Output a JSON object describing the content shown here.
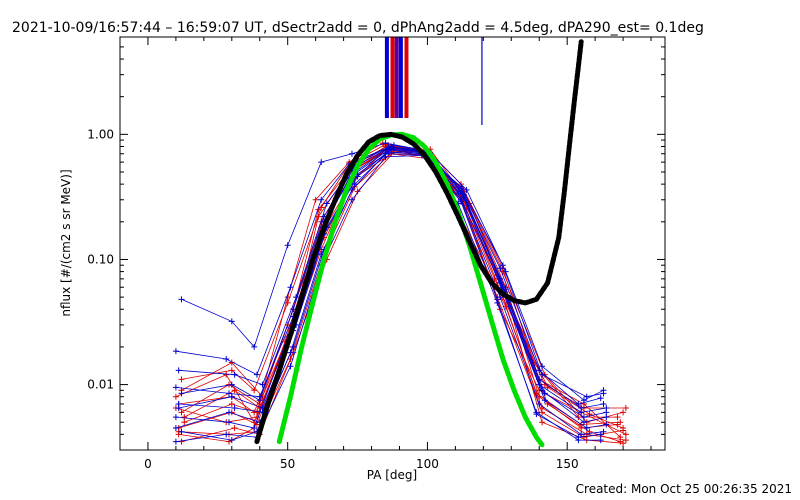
{
  "chart_data": {
    "type": "line",
    "title": "2021-10-09/16:57:44 – 16:59:07 UT, dSectr2add = 0, dPhAng2add = 4.5deg, dPA290_est=  0.1deg",
    "xlabel": "PA [deg]",
    "ylabel": "nflux [#/(cm2 s sr MeV)]",
    "footer": "Created: Mon Oct 25 00:26:35 2021",
    "xlim": [
      -10,
      185
    ],
    "ylim": [
      0.003,
      6.0
    ],
    "yscale": "log",
    "xticks": [
      0,
      50,
      100,
      150
    ],
    "xtick_labels": [
      "0",
      "50",
      "100",
      "150"
    ],
    "yticks": [
      0.01,
      0.1,
      1.0
    ],
    "ytick_labels": [
      "0.01",
      "0.10",
      "1.00"
    ],
    "colors": {
      "red_series": "#e00000",
      "blue_series": "#0000d0",
      "black_fit": "#000000",
      "green_fit": "#00dd00",
      "marker_lines": [
        "#0000d0",
        "#e00000",
        "#5a00a0",
        "#0000d0",
        "#e00000",
        "#0000d0"
      ]
    },
    "vertical_markers_pa": [
      85.5,
      87.5,
      89.0,
      90.5,
      92.5,
      119.5
    ],
    "black_fit": {
      "x": [
        39,
        43,
        47,
        51,
        55,
        59,
        63,
        67,
        71,
        75,
        79,
        83,
        87,
        91,
        95,
        99,
        103,
        107,
        111,
        115,
        119,
        123,
        127,
        131,
        135,
        139,
        143,
        147,
        149,
        151,
        152.5,
        154,
        155
      ],
      "y": [
        0.0035,
        0.007,
        0.013,
        0.025,
        0.05,
        0.1,
        0.18,
        0.3,
        0.48,
        0.68,
        0.87,
        0.98,
        1.0,
        0.95,
        0.84,
        0.68,
        0.5,
        0.34,
        0.22,
        0.14,
        0.09,
        0.065,
        0.053,
        0.047,
        0.045,
        0.048,
        0.065,
        0.15,
        0.35,
        0.9,
        1.8,
        3.5,
        5.5
      ]
    },
    "green_fit": {
      "x": [
        47,
        51,
        55,
        59,
        63,
        67,
        71,
        75,
        79,
        83,
        87,
        91,
        95,
        99,
        103,
        107,
        111,
        115,
        119,
        123,
        127,
        131,
        135,
        139,
        141
      ],
      "y": [
        0.0035,
        0.008,
        0.02,
        0.045,
        0.1,
        0.2,
        0.36,
        0.56,
        0.76,
        0.92,
        0.99,
        1.0,
        0.94,
        0.8,
        0.6,
        0.4,
        0.24,
        0.13,
        0.065,
        0.032,
        0.016,
        0.009,
        0.0055,
        0.0038,
        0.0033
      ]
    },
    "series": [
      {
        "color": "red",
        "x": [
          11,
          30,
          38,
          50,
          62,
          72,
          85,
          100,
          112,
          128,
          140,
          155,
          168
        ],
        "y": [
          0.007,
          0.008,
          0.006,
          0.03,
          0.2,
          0.5,
          0.8,
          0.75,
          0.4,
          0.06,
          0.008,
          0.0045,
          0.0048
        ]
      },
      {
        "color": "red",
        "x": [
          11,
          30,
          39,
          50,
          62,
          72,
          85,
          98,
          112,
          125,
          141,
          156,
          170
        ],
        "y": [
          0.0045,
          0.006,
          0.0048,
          0.02,
          0.12,
          0.4,
          0.75,
          0.72,
          0.3,
          0.05,
          0.006,
          0.0038,
          0.0043
        ]
      },
      {
        "color": "red",
        "x": [
          12,
          29,
          40,
          52,
          61,
          73,
          86,
          99,
          113,
          127,
          142,
          157,
          170
        ],
        "y": [
          0.006,
          0.01,
          0.007,
          0.04,
          0.25,
          0.55,
          0.82,
          0.7,
          0.35,
          0.08,
          0.012,
          0.005,
          0.006
        ]
      },
      {
        "color": "red",
        "x": [
          10,
          28,
          38,
          51,
          63,
          74,
          87,
          100,
          114,
          126,
          140,
          155,
          171
        ],
        "y": [
          0.008,
          0.012,
          0.005,
          0.025,
          0.15,
          0.45,
          0.7,
          0.68,
          0.25,
          0.04,
          0.009,
          0.006,
          0.004
        ]
      },
      {
        "color": "red",
        "x": [
          12,
          31,
          40,
          52,
          64,
          75,
          88,
          101,
          115,
          128,
          143,
          158,
          169
        ],
        "y": [
          0.0035,
          0.0045,
          0.004,
          0.018,
          0.1,
          0.35,
          0.72,
          0.76,
          0.28,
          0.055,
          0.007,
          0.0042,
          0.0035
        ]
      },
      {
        "color": "red",
        "x": [
          13,
          30,
          39,
          50,
          60,
          72,
          84,
          97,
          112,
          124,
          138,
          154,
          168
        ],
        "y": [
          0.005,
          0.007,
          0.006,
          0.05,
          0.3,
          0.6,
          0.85,
          0.74,
          0.32,
          0.07,
          0.015,
          0.0055,
          0.0055
        ]
      },
      {
        "color": "red",
        "x": [
          11,
          29,
          38,
          49,
          62,
          71,
          86,
          98,
          111,
          129,
          141,
          157,
          170
        ],
        "y": [
          0.004,
          0.0035,
          0.0045,
          0.022,
          0.18,
          0.48,
          0.78,
          0.72,
          0.38,
          0.045,
          0.005,
          0.0036,
          0.0034
        ]
      },
      {
        "color": "red",
        "x": [
          12,
          30,
          41,
          53,
          63,
          74,
          87,
          100,
          113,
          126,
          142,
          156,
          171
        ],
        "y": [
          0.009,
          0.015,
          0.008,
          0.035,
          0.2,
          0.52,
          0.8,
          0.7,
          0.3,
          0.065,
          0.01,
          0.0065,
          0.0065
        ]
      },
      {
        "color": "red",
        "x": [
          10,
          28,
          39,
          51,
          62,
          73,
          85,
          99,
          114,
          127,
          139,
          155,
          169
        ],
        "y": [
          0.0065,
          0.005,
          0.0055,
          0.028,
          0.16,
          0.42,
          0.76,
          0.69,
          0.27,
          0.05,
          0.0085,
          0.0048,
          0.005
        ]
      },
      {
        "color": "red",
        "x": [
          13,
          31,
          40,
          52,
          61,
          72,
          86,
          101,
          112,
          125,
          143,
          158,
          170
        ],
        "y": [
          0.0055,
          0.009,
          0.0065,
          0.03,
          0.22,
          0.5,
          0.74,
          0.66,
          0.33,
          0.075,
          0.0095,
          0.0058,
          0.0045
        ]
      },
      {
        "color": "red",
        "x": [
          12,
          30,
          38,
          50,
          62,
          72,
          85,
          98,
          113,
          127,
          140,
          156,
          169
        ],
        "y": [
          0.011,
          0.013,
          0.009,
          0.045,
          0.26,
          0.58,
          0.83,
          0.73,
          0.36,
          0.085,
          0.011,
          0.007,
          0.0038
        ]
      },
      {
        "color": "red",
        "x": [
          11,
          29,
          39,
          51,
          63,
          74,
          87,
          100,
          111,
          128,
          141,
          157,
          171
        ],
        "y": [
          0.0042,
          0.004,
          0.0042,
          0.016,
          0.11,
          0.38,
          0.7,
          0.64,
          0.24,
          0.042,
          0.0065,
          0.004,
          0.0036
        ]
      },
      {
        "color": "blue",
        "x": [
          10,
          29,
          40,
          52,
          63,
          74,
          86,
          99,
          112,
          126,
          140,
          155,
          163
        ],
        "y": [
          0.0045,
          0.006,
          0.005,
          0.02,
          0.12,
          0.4,
          0.72,
          0.7,
          0.3,
          0.05,
          0.007,
          0.004,
          0.0042
        ]
      },
      {
        "color": "blue",
        "x": [
          11,
          30,
          41,
          53,
          64,
          75,
          88,
          100,
          113,
          127,
          141,
          156,
          164
        ],
        "y": [
          0.0065,
          0.008,
          0.0065,
          0.03,
          0.18,
          0.48,
          0.78,
          0.74,
          0.33,
          0.06,
          0.009,
          0.005,
          0.0055
        ]
      },
      {
        "color": "blue",
        "x": [
          10,
          28,
          39,
          51,
          62,
          73,
          85,
          98,
          111,
          125,
          139,
          154,
          162
        ],
        "y": [
          0.0035,
          0.004,
          0.0038,
          0.014,
          0.09,
          0.3,
          0.66,
          0.68,
          0.28,
          0.045,
          0.006,
          0.0036,
          0.0036
        ]
      },
      {
        "color": "blue",
        "x": [
          12,
          30,
          40,
          52,
          63,
          74,
          87,
          100,
          112,
          126,
          140,
          155,
          163
        ],
        "y": [
          0.0085,
          0.01,
          0.0075,
          0.04,
          0.22,
          0.55,
          0.8,
          0.72,
          0.35,
          0.07,
          0.011,
          0.0065,
          0.007
        ]
      },
      {
        "color": "blue",
        "x": [
          10,
          29,
          38,
          50,
          61,
          72,
          86,
          99,
          113,
          127,
          142,
          157,
          164
        ],
        "y": [
          0.0055,
          0.005,
          0.0045,
          0.024,
          0.15,
          0.45,
          0.75,
          0.7,
          0.31,
          0.055,
          0.0075,
          0.0045,
          0.0048
        ]
      },
      {
        "color": "blue",
        "x": [
          11,
          31,
          41,
          53,
          64,
          75,
          88,
          101,
          114,
          128,
          141,
          156,
          163
        ],
        "y": [
          0.013,
          0.012,
          0.01,
          0.05,
          0.28,
          0.6,
          0.82,
          0.71,
          0.36,
          0.08,
          0.014,
          0.0075,
          0.009
        ]
      },
      {
        "color": "blue",
        "x": [
          12,
          30,
          39,
          51,
          62,
          73,
          85,
          98,
          112,
          125,
          139,
          154,
          162
        ],
        "y": [
          0.0042,
          0.0036,
          0.0042,
          0.018,
          0.11,
          0.36,
          0.7,
          0.69,
          0.29,
          0.048,
          0.0058,
          0.0038,
          0.004
        ]
      },
      {
        "color": "blue",
        "x": [
          10,
          29,
          40,
          52,
          63,
          74,
          86,
          99,
          111,
          126,
          140,
          155,
          164
        ],
        "y": [
          0.0095,
          0.0085,
          0.008,
          0.035,
          0.2,
          0.5,
          0.77,
          0.73,
          0.34,
          0.065,
          0.01,
          0.006,
          0.0065
        ]
      },
      {
        "color": "blue",
        "x": [
          12,
          30,
          38,
          50,
          62,
          73,
          85,
          97,
          112,
          127,
          141,
          157,
          163
        ],
        "y": [
          0.048,
          0.032,
          0.02,
          0.13,
          0.6,
          0.7,
          0.85,
          0.76,
          0.38,
          0.09,
          0.012,
          0.008,
          0.0085
        ]
      },
      {
        "color": "blue",
        "x": [
          11,
          31,
          41,
          52,
          63,
          75,
          87,
          100,
          113,
          128,
          142,
          156,
          164
        ],
        "y": [
          0.007,
          0.0065,
          0.006,
          0.027,
          0.16,
          0.46,
          0.76,
          0.71,
          0.32,
          0.058,
          0.0085,
          0.0055,
          0.006
        ]
      },
      {
        "color": "blue",
        "x": [
          10,
          28,
          39,
          51,
          62,
          72,
          86,
          99,
          112,
          126,
          140,
          154,
          162
        ],
        "y": [
          0.0185,
          0.016,
          0.012,
          0.06,
          0.3,
          0.58,
          0.79,
          0.72,
          0.37,
          0.085,
          0.013,
          0.007,
          0.0078
        ]
      }
    ]
  }
}
